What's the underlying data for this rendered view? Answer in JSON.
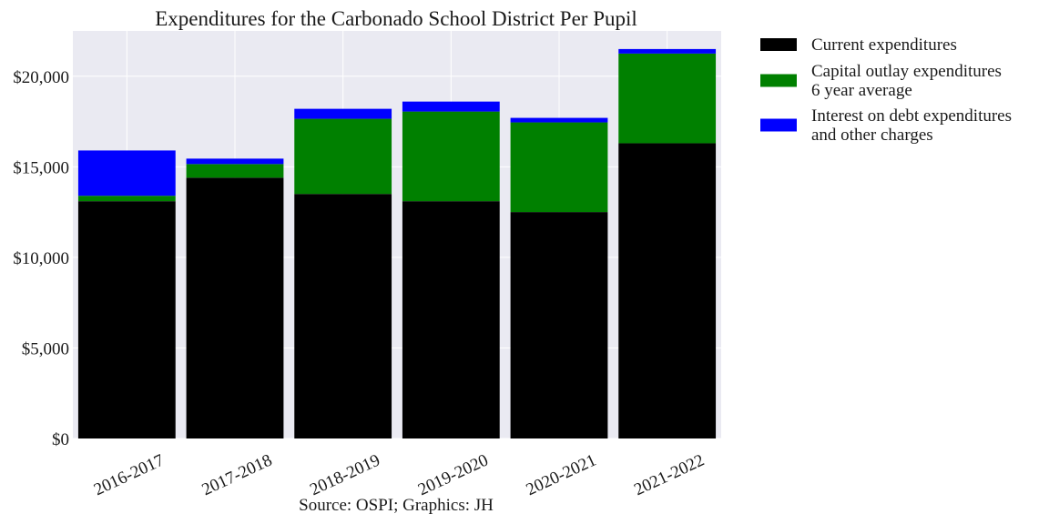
{
  "colors": {
    "plot_background": "#eaeaf2",
    "grid": "#ffffff",
    "current": "#000000",
    "capital": "#008000",
    "interest": "#0000ff"
  },
  "chart_data": {
    "type": "bar",
    "stacked": true,
    "title": "Expenditures for the Carbonado School District Per Pupil",
    "source": "Source: OSPI; Graphics: JH",
    "xlabel": "",
    "ylabel": "",
    "ylim": [
      0,
      22500
    ],
    "yticks": [
      0,
      5000,
      10000,
      15000,
      20000
    ],
    "ytick_labels": [
      "$0",
      "$5,000",
      "$10,000",
      "$15,000",
      "$20,000"
    ],
    "grid": true,
    "legend_position": "outside-right-top",
    "categories": [
      "2016-2017",
      "2017-2018",
      "2018-2019",
      "2019-2020",
      "2020-2021",
      "2021-2022"
    ],
    "series": [
      {
        "name": "Current expenditures",
        "legend_lines": [
          "Current expenditures"
        ],
        "color": "#000000",
        "values": [
          13100,
          14400,
          13500,
          13100,
          12500,
          16300
        ]
      },
      {
        "name": "Capital outlay expenditures 6 year average",
        "legend_lines": [
          "Capital outlay expenditures",
          "6 year average"
        ],
        "color": "#008000",
        "values": [
          300,
          750,
          4150,
          4950,
          4950,
          4950
        ]
      },
      {
        "name": "Interest on debt expenditures and other charges",
        "legend_lines": [
          "Interest on debt expenditures",
          "and other charges"
        ],
        "color": "#0000ff",
        "values": [
          2500,
          300,
          550,
          550,
          250,
          250
        ]
      }
    ]
  }
}
